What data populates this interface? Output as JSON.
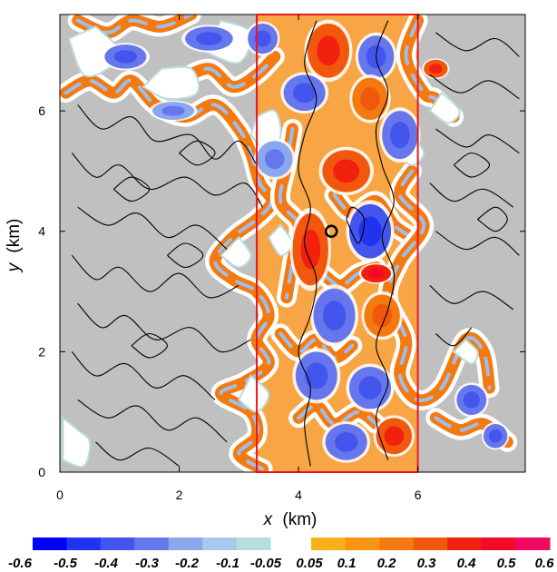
{
  "chart_data": {
    "type": "heatmap",
    "title": "",
    "xlabel": "x",
    "xlabel_unit": "(km)",
    "ylabel": "y",
    "ylabel_unit": "(km)",
    "xlim": [
      0,
      7.8
    ],
    "ylim": [
      0,
      7.6
    ],
    "x_ticks": [
      0,
      2,
      4,
      6
    ],
    "y_ticks": [
      0,
      2,
      4,
      6
    ],
    "x_tick_labels": [
      "0",
      "2",
      "4",
      "6"
    ],
    "y_tick_labels": [
      "0",
      "2",
      "4",
      "6"
    ],
    "background_color": "#c0c0c0",
    "contour_color": "#000000",
    "highlight_box": {
      "x": [
        3.3,
        6.0
      ],
      "y": [
        0,
        7.6
      ],
      "color": "#e8171d"
    },
    "marker": {
      "x": 4.55,
      "y": 4.0,
      "shape": "open-circle",
      "color": "#000000"
    },
    "colorbar": {
      "negative": {
        "colors": [
          "#0000ff",
          "#2233f0",
          "#4455ee",
          "#6677ee",
          "#8aa8ee",
          "#a8c8ec",
          "#b8dde0"
        ],
        "labels": [
          "-0.6",
          "-0.5",
          "-0.4",
          "-0.3",
          "-0.2",
          "-0.1",
          "-0.05"
        ]
      },
      "positive": {
        "colors": [
          "#f9b11a",
          "#f59512",
          "#f47a10",
          "#f2570e",
          "#f2200e",
          "#f20a2a",
          "#ee0a60"
        ],
        "labels": [
          "0.05",
          "0.1",
          "0.2",
          "0.3",
          "0.4",
          "0.5",
          "0.6"
        ]
      }
    },
    "blobs": [
      {
        "x": 4.5,
        "y": 7.0,
        "rx": 0.35,
        "ry": 0.45,
        "v": 0.3
      },
      {
        "x": 5.3,
        "y": 6.9,
        "rx": 0.3,
        "ry": 0.35,
        "v": -0.3
      },
      {
        "x": 4.1,
        "y": 6.3,
        "rx": 0.35,
        "ry": 0.3,
        "v": -0.35
      },
      {
        "x": 5.2,
        "y": 6.2,
        "rx": 0.3,
        "ry": 0.35,
        "v": 0.25
      },
      {
        "x": 5.7,
        "y": 5.6,
        "rx": 0.3,
        "ry": 0.4,
        "v": -0.3
      },
      {
        "x": 4.8,
        "y": 5.0,
        "rx": 0.4,
        "ry": 0.35,
        "v": 0.3
      },
      {
        "x": 5.2,
        "y": 4.0,
        "rx": 0.35,
        "ry": 0.45,
        "v": -0.45
      },
      {
        "x": 4.2,
        "y": 3.7,
        "rx": 0.3,
        "ry": 0.6,
        "v": 0.3
      },
      {
        "x": 5.3,
        "y": 3.3,
        "rx": 0.25,
        "ry": 0.15,
        "v": 0.4
      },
      {
        "x": 4.6,
        "y": 2.6,
        "rx": 0.35,
        "ry": 0.45,
        "v": -0.3
      },
      {
        "x": 5.4,
        "y": 2.6,
        "rx": 0.3,
        "ry": 0.35,
        "v": 0.25
      },
      {
        "x": 4.3,
        "y": 1.6,
        "rx": 0.35,
        "ry": 0.4,
        "v": -0.3
      },
      {
        "x": 5.2,
        "y": 1.4,
        "rx": 0.35,
        "ry": 0.35,
        "v": -0.3
      },
      {
        "x": 4.8,
        "y": 0.5,
        "rx": 0.35,
        "ry": 0.3,
        "v": -0.35
      },
      {
        "x": 5.6,
        "y": 0.6,
        "rx": 0.3,
        "ry": 0.3,
        "v": 0.3
      },
      {
        "x": 3.6,
        "y": 5.2,
        "rx": 0.3,
        "ry": 0.3,
        "v": -0.25
      },
      {
        "x": 1.1,
        "y": 6.9,
        "rx": 0.35,
        "ry": 0.2,
        "v": -0.3
      },
      {
        "x": 2.5,
        "y": 7.2,
        "rx": 0.4,
        "ry": 0.2,
        "v": -0.3
      },
      {
        "x": 3.4,
        "y": 7.2,
        "rx": 0.25,
        "ry": 0.25,
        "v": -0.3
      },
      {
        "x": 1.9,
        "y": 6.0,
        "rx": 0.35,
        "ry": 0.15,
        "v": -0.25
      },
      {
        "x": 6.9,
        "y": 1.2,
        "rx": 0.25,
        "ry": 0.25,
        "v": -0.3
      },
      {
        "x": 7.3,
        "y": 0.6,
        "rx": 0.2,
        "ry": 0.2,
        "v": -0.3
      },
      {
        "x": 6.3,
        "y": 6.7,
        "rx": 0.2,
        "ry": 0.15,
        "v": 0.3
      }
    ],
    "bands": [
      [
        [
          0.1,
          6.3
        ],
        [
          0.5,
          6.5
        ],
        [
          0.9,
          6.3
        ],
        [
          1.2,
          6.5
        ],
        [
          1.6,
          6.1
        ],
        [
          2.1,
          5.9
        ],
        [
          2.6,
          6.1
        ],
        [
          3.0,
          5.7
        ],
        [
          3.2,
          5.3
        ],
        [
          3.35,
          4.8
        ],
        [
          3.55,
          4.5
        ],
        [
          3.3,
          4.2
        ],
        [
          2.9,
          3.9
        ],
        [
          2.6,
          3.5
        ],
        [
          2.9,
          3.2
        ],
        [
          3.3,
          3.0
        ],
        [
          3.5,
          2.6
        ],
        [
          3.3,
          2.2
        ],
        [
          3.5,
          1.8
        ],
        [
          3.1,
          1.5
        ],
        [
          2.7,
          1.3
        ],
        [
          3.2,
          1.0
        ],
        [
          3.3,
          0.6
        ],
        [
          3.0,
          0.3
        ],
        [
          3.4,
          0.05
        ]
      ],
      [
        [
          0.3,
          7.5
        ],
        [
          0.8,
          7.3
        ],
        [
          1.2,
          7.5
        ],
        [
          1.7,
          7.4
        ],
        [
          2.2,
          7.6
        ]
      ],
      [
        [
          2.0,
          6.5
        ],
        [
          2.5,
          6.7
        ],
        [
          2.9,
          6.4
        ],
        [
          3.3,
          6.6
        ],
        [
          3.6,
          6.9
        ]
      ],
      [
        [
          3.9,
          5.7
        ],
        [
          3.8,
          5.1
        ],
        [
          3.7,
          4.5
        ],
        [
          4.0,
          4.1
        ],
        [
          3.9,
          3.5
        ],
        [
          3.8,
          2.9
        ]
      ],
      [
        [
          4.6,
          4.6
        ],
        [
          4.9,
          4.3
        ],
        [
          5.3,
          4.5
        ],
        [
          5.6,
          4.1
        ],
        [
          5.9,
          3.9
        ]
      ],
      [
        [
          6.0,
          7.5
        ],
        [
          5.8,
          6.9
        ],
        [
          6.1,
          6.3
        ],
        [
          6.3,
          6.2
        ],
        [
          6.6,
          5.9
        ]
      ],
      [
        [
          5.9,
          5.0
        ],
        [
          5.7,
          4.6
        ],
        [
          6.1,
          4.1
        ],
        [
          5.7,
          3.5
        ],
        [
          5.5,
          2.9
        ],
        [
          5.8,
          2.2
        ],
        [
          5.7,
          1.6
        ],
        [
          6.0,
          1.2
        ],
        [
          6.4,
          1.4
        ],
        [
          6.8,
          2.2
        ],
        [
          7.1,
          2.0
        ],
        [
          7.2,
          1.4
        ]
      ],
      [
        [
          6.3,
          0.9
        ],
        [
          6.7,
          0.7
        ],
        [
          7.1,
          0.8
        ],
        [
          7.5,
          0.5
        ]
      ],
      [
        [
          4.4,
          3.3
        ],
        [
          4.7,
          3.1
        ],
        [
          5.0,
          3.3
        ],
        [
          5.3,
          3.4
        ]
      ],
      [
        [
          3.7,
          2.3
        ],
        [
          4.0,
          2.0
        ],
        [
          4.3,
          2.2
        ],
        [
          4.6,
          1.9
        ],
        [
          4.9,
          2.1
        ]
      ],
      [
        [
          4.0,
          0.9
        ],
        [
          4.3,
          1.1
        ],
        [
          4.6,
          0.8
        ],
        [
          5.0,
          1.0
        ],
        [
          5.3,
          0.8
        ]
      ]
    ],
    "white_regions": [
      [
        [
          0.15,
          7.2
        ],
        [
          0.4,
          6.6
        ],
        [
          0.8,
          6.7
        ],
        [
          1.0,
          7.0
        ],
        [
          0.6,
          7.4
        ]
      ],
      [
        [
          1.4,
          6.4
        ],
        [
          1.8,
          6.2
        ],
        [
          2.3,
          6.3
        ],
        [
          2.2,
          6.7
        ],
        [
          1.7,
          6.7
        ]
      ],
      [
        [
          2.4,
          7.0
        ],
        [
          3.0,
          6.8
        ],
        [
          3.2,
          7.3
        ],
        [
          2.7,
          7.5
        ]
      ],
      [
        [
          3.2,
          5.6
        ],
        [
          3.5,
          5.3
        ],
        [
          3.7,
          5.6
        ],
        [
          3.6,
          6.0
        ],
        [
          3.3,
          5.9
        ]
      ],
      [
        [
          2.7,
          3.6
        ],
        [
          3.0,
          3.4
        ],
        [
          3.2,
          3.6
        ],
        [
          3.0,
          3.9
        ]
      ],
      [
        [
          3.0,
          1.2
        ],
        [
          3.3,
          1.0
        ],
        [
          3.5,
          1.3
        ],
        [
          3.2,
          1.6
        ]
      ],
      [
        [
          3.5,
          3.9
        ],
        [
          3.7,
          3.6
        ],
        [
          3.9,
          3.8
        ],
        [
          3.7,
          4.1
        ]
      ],
      [
        [
          5.6,
          5.3
        ],
        [
          5.9,
          5.1
        ],
        [
          6.1,
          5.3
        ],
        [
          5.9,
          5.6
        ]
      ],
      [
        [
          6.2,
          6.0
        ],
        [
          6.5,
          5.8
        ],
        [
          6.7,
          6.0
        ],
        [
          6.4,
          6.3
        ]
      ],
      [
        [
          6.6,
          2.0
        ],
        [
          6.9,
          1.8
        ],
        [
          7.0,
          2.0
        ],
        [
          6.8,
          2.2
        ]
      ],
      [
        [
          0.05,
          0.9
        ],
        [
          0.3,
          0.7
        ],
        [
          0.5,
          0.5
        ],
        [
          0.4,
          0.1
        ],
        [
          0.05,
          0.2
        ]
      ]
    ],
    "contours": [
      [
        [
          0.3,
          6.1
        ],
        [
          0.7,
          5.7
        ],
        [
          1.2,
          5.9
        ],
        [
          1.6,
          5.5
        ],
        [
          2.2,
          5.6
        ],
        [
          2.6,
          5.2
        ],
        [
          3.0,
          5.5
        ],
        [
          3.3,
          5.1
        ]
      ],
      [
        [
          0.2,
          5.3
        ],
        [
          0.6,
          4.9
        ],
        [
          1.0,
          5.1
        ],
        [
          1.5,
          4.7
        ],
        [
          2.1,
          4.9
        ],
        [
          2.6,
          4.6
        ],
        [
          3.1,
          4.8
        ],
        [
          3.4,
          4.4
        ]
      ],
      [
        [
          0.3,
          4.4
        ],
        [
          0.8,
          4.1
        ],
        [
          1.3,
          4.3
        ],
        [
          1.8,
          3.9
        ],
        [
          2.3,
          4.1
        ],
        [
          2.8,
          3.7
        ]
      ],
      [
        [
          0.2,
          3.6
        ],
        [
          0.6,
          3.2
        ],
        [
          1.0,
          3.4
        ],
        [
          1.5,
          3.0
        ],
        [
          2.0,
          3.3
        ],
        [
          2.5,
          2.9
        ],
        [
          3.0,
          3.1
        ]
      ],
      [
        [
          0.3,
          2.8
        ],
        [
          0.7,
          2.4
        ],
        [
          1.1,
          2.6
        ],
        [
          1.6,
          2.2
        ],
        [
          2.2,
          2.4
        ],
        [
          2.7,
          2.0
        ],
        [
          3.2,
          2.2
        ]
      ],
      [
        [
          0.2,
          2.0
        ],
        [
          0.6,
          1.6
        ],
        [
          1.1,
          1.8
        ],
        [
          1.6,
          1.4
        ],
        [
          2.1,
          1.6
        ],
        [
          2.6,
          1.2
        ]
      ],
      [
        [
          0.3,
          1.2
        ],
        [
          0.8,
          0.9
        ],
        [
          1.3,
          1.1
        ],
        [
          1.8,
          0.7
        ],
        [
          2.3,
          0.9
        ],
        [
          2.8,
          0.5
        ]
      ],
      [
        [
          0.6,
          0.5
        ],
        [
          1.0,
          0.2
        ],
        [
          1.5,
          0.4
        ],
        [
          2.0,
          0.1
        ]
      ],
      [
        [
          0.9,
          4.7
        ],
        [
          1.2,
          4.5
        ],
        [
          1.5,
          4.7
        ],
        [
          1.2,
          4.9
        ],
        [
          0.9,
          4.7
        ]
      ],
      [
        [
          1.8,
          3.6
        ],
        [
          2.1,
          3.4
        ],
        [
          2.4,
          3.6
        ],
        [
          2.1,
          3.8
        ],
        [
          1.8,
          3.6
        ]
      ],
      [
        [
          1.2,
          2.1
        ],
        [
          1.5,
          1.9
        ],
        [
          1.8,
          2.1
        ],
        [
          1.5,
          2.3
        ],
        [
          1.2,
          2.1
        ]
      ],
      [
        [
          2.0,
          5.3
        ],
        [
          2.3,
          5.1
        ],
        [
          2.6,
          5.3
        ],
        [
          2.3,
          5.5
        ],
        [
          2.0,
          5.3
        ]
      ],
      [
        [
          4.3,
          7.5
        ],
        [
          4.1,
          6.8
        ],
        [
          4.3,
          6.2
        ],
        [
          4.1,
          5.6
        ],
        [
          4.0,
          5.0
        ],
        [
          4.2,
          4.4
        ],
        [
          4.1,
          3.8
        ],
        [
          4.3,
          3.2
        ],
        [
          4.2,
          2.6
        ],
        [
          4.0,
          2.0
        ],
        [
          4.2,
          1.4
        ],
        [
          4.1,
          0.8
        ],
        [
          4.2,
          0.1
        ]
      ],
      [
        [
          5.5,
          7.5
        ],
        [
          5.3,
          6.9
        ],
        [
          5.5,
          6.3
        ],
        [
          5.3,
          5.7
        ],
        [
          5.4,
          5.1
        ],
        [
          5.6,
          4.5
        ],
        [
          5.4,
          3.9
        ],
        [
          5.6,
          3.3
        ],
        [
          5.5,
          2.7
        ],
        [
          5.3,
          2.1
        ],
        [
          5.5,
          1.5
        ],
        [
          5.3,
          0.9
        ],
        [
          5.5,
          0.2
        ]
      ],
      [
        [
          6.3,
          7.3
        ],
        [
          6.8,
          7.0
        ],
        [
          7.3,
          7.2
        ],
        [
          7.7,
          6.9
        ]
      ],
      [
        [
          6.2,
          6.6
        ],
        [
          6.7,
          6.3
        ],
        [
          7.2,
          6.5
        ],
        [
          7.7,
          6.2
        ]
      ],
      [
        [
          6.3,
          5.7
        ],
        [
          6.8,
          5.4
        ],
        [
          7.2,
          5.6
        ],
        [
          7.7,
          5.3
        ]
      ],
      [
        [
          6.2,
          4.8
        ],
        [
          6.6,
          4.5
        ],
        [
          7.1,
          4.7
        ],
        [
          7.6,
          4.4
        ]
      ],
      [
        [
          6.3,
          4.0
        ],
        [
          6.8,
          3.7
        ],
        [
          7.3,
          3.9
        ],
        [
          7.7,
          3.6
        ]
      ],
      [
        [
          6.2,
          3.1
        ],
        [
          6.6,
          2.8
        ],
        [
          7.1,
          3.0
        ],
        [
          7.6,
          2.7
        ]
      ],
      [
        [
          6.3,
          2.3
        ],
        [
          6.6,
          2.1
        ],
        [
          6.9,
          2.4
        ]
      ],
      [
        [
          7.0,
          4.2
        ],
        [
          7.3,
          4.0
        ],
        [
          7.5,
          4.2
        ],
        [
          7.3,
          4.4
        ],
        [
          7.0,
          4.2
        ]
      ],
      [
        [
          6.6,
          5.1
        ],
        [
          6.9,
          4.9
        ],
        [
          7.2,
          5.1
        ],
        [
          6.9,
          5.3
        ],
        [
          6.6,
          5.1
        ]
      ],
      [
        [
          4.8,
          4.2
        ],
        [
          5.0,
          3.8
        ],
        [
          5.1,
          4.2
        ],
        [
          4.9,
          4.4
        ],
        [
          4.8,
          4.2
        ]
      ]
    ]
  }
}
